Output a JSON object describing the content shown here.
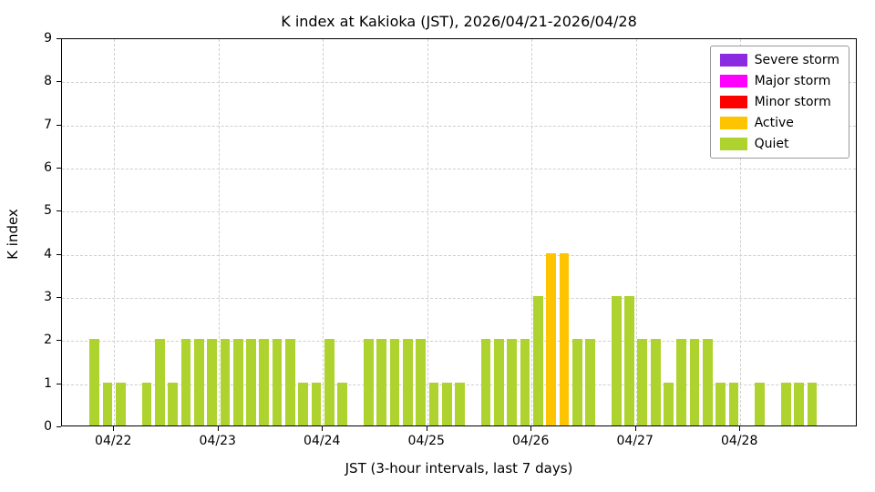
{
  "chart_data": {
    "type": "bar",
    "title": "K index at Kakioka (JST), 2026/04/21-2026/04/28",
    "xlabel": "JST (3-hour intervals, last 7 days)",
    "ylabel": "K index",
    "ylim": [
      0,
      9
    ],
    "yticks": [
      0,
      1,
      2,
      3,
      4,
      5,
      6,
      7,
      8,
      9
    ],
    "grid": "dashed",
    "legend_position": "upper right",
    "interval_hours": 3,
    "x": [
      "04/21 18:00",
      "04/21 21:00",
      "04/22 00:00",
      "04/22 03:00",
      "04/22 06:00",
      "04/22 09:00",
      "04/22 12:00",
      "04/22 15:00",
      "04/22 18:00",
      "04/22 21:00",
      "04/23 00:00",
      "04/23 03:00",
      "04/23 06:00",
      "04/23 09:00",
      "04/23 12:00",
      "04/23 15:00",
      "04/23 18:00",
      "04/23 21:00",
      "04/24 00:00",
      "04/24 03:00",
      "04/24 06:00",
      "04/24 09:00",
      "04/24 12:00",
      "04/24 15:00",
      "04/24 18:00",
      "04/24 21:00",
      "04/25 00:00",
      "04/25 03:00",
      "04/25 06:00",
      "04/25 09:00",
      "04/25 12:00",
      "04/25 15:00",
      "04/25 18:00",
      "04/25 21:00",
      "04/26 00:00",
      "04/26 03:00",
      "04/26 06:00",
      "04/26 09:00",
      "04/26 12:00",
      "04/26 15:00",
      "04/26 18:00",
      "04/26 21:00",
      "04/27 00:00",
      "04/27 03:00",
      "04/27 06:00",
      "04/27 09:00",
      "04/27 12:00",
      "04/27 15:00",
      "04/27 18:00",
      "04/27 21:00",
      "04/28 00:00",
      "04/28 03:00",
      "04/28 06:00",
      "04/28 09:00",
      "04/28 12:00",
      "04/28 15:00"
    ],
    "values": [
      2,
      1,
      1,
      0,
      1,
      2,
      1,
      2,
      2,
      2,
      2,
      2,
      2,
      2,
      2,
      2,
      1,
      1,
      2,
      1,
      0,
      2,
      2,
      2,
      2,
      2,
      1,
      1,
      1,
      0,
      2,
      2,
      2,
      2,
      3,
      4,
      4,
      2,
      2,
      0,
      3,
      3,
      2,
      2,
      1,
      2,
      2,
      2,
      1,
      1,
      0,
      1,
      0,
      1,
      1,
      1
    ],
    "xticklabels": [
      "04/22",
      "04/23",
      "04/24",
      "04/25",
      "04/26",
      "04/27",
      "04/28"
    ],
    "axis": {
      "slots_total": 61,
      "first_bar_slot": 2,
      "tick_slots": [
        4,
        12,
        20,
        28,
        36,
        44,
        52
      ],
      "bar_width_fraction": 0.75
    },
    "colors": {
      "severe": "#8A2BE2",
      "major": "#FF00FF",
      "minor": "#FF0000",
      "active": "#FFC400",
      "quiet": "#AED32E"
    },
    "color_thresholds": {
      "quiet_max": 3,
      "active": 4,
      "minor": 5,
      "major": 6,
      "severe_min": 7
    },
    "legend": [
      {
        "label": "Severe storm",
        "color": "#8A2BE2"
      },
      {
        "label": "Major storm",
        "color": "#FF00FF"
      },
      {
        "label": "Minor storm",
        "color": "#FF0000"
      },
      {
        "label": "Active",
        "color": "#FFC400"
      },
      {
        "label": "Quiet",
        "color": "#AED32E"
      }
    ]
  }
}
